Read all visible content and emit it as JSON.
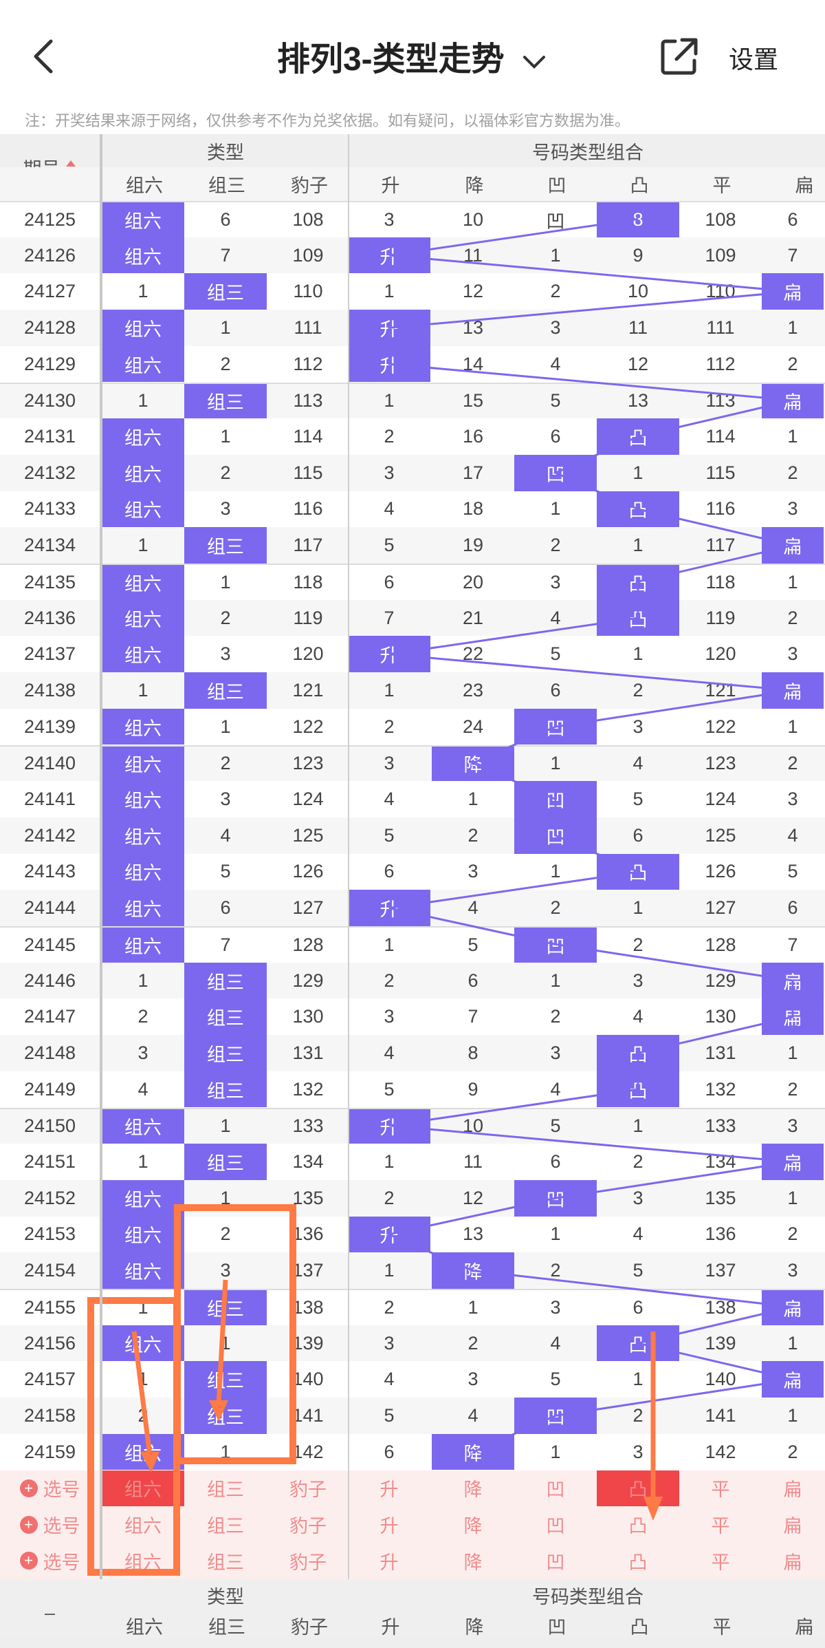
{
  "header": {
    "title": "排列3-类型走势",
    "settings": "设置",
    "notice": "注：开奖结果来源于网络，仅供参考不作为兑奖依据。如有疑问，以福体彩官方数据为准。"
  },
  "icons": {
    "back": "back-arrow-icon",
    "dropdown": "chevron-down-icon",
    "share": "share-icon"
  },
  "colors": {
    "highlight": "#7b68ee",
    "red": "#f0464a",
    "orange": "#ff7a45",
    "pink_bg": "#fdeeee"
  },
  "table": {
    "period_header": "期号",
    "group1_header": "类型",
    "group2_header": "号码类型组合",
    "type_cols": [
      "组六",
      "组三",
      "豹子"
    ],
    "combo_cols": [
      "升",
      "降",
      "凹",
      "凸",
      "平",
      "扁"
    ],
    "rows": [
      {
        "p": "24125",
        "t": [
          "组六",
          "6",
          "108"
        ],
        "c": [
          "3",
          "10",
          "凹",
          "8",
          "108",
          "6"
        ],
        "h": [
          0,
          6
        ]
      },
      {
        "p": "24126",
        "t": [
          "组六",
          "7",
          "109"
        ],
        "c": [
          "升",
          "11",
          "1",
          "9",
          "109",
          "7"
        ],
        "h": [
          0,
          3
        ]
      },
      {
        "p": "24127",
        "t": [
          "1",
          "组三",
          "110"
        ],
        "c": [
          "1",
          "12",
          "2",
          "10",
          "110",
          "扁"
        ],
        "h": [
          1,
          8
        ]
      },
      {
        "p": "24128",
        "t": [
          "组六",
          "1",
          "111"
        ],
        "c": [
          "升",
          "13",
          "3",
          "11",
          "111",
          "1"
        ],
        "h": [
          0,
          3
        ]
      },
      {
        "p": "24129",
        "t": [
          "组六",
          "2",
          "112"
        ],
        "c": [
          "升",
          "14",
          "4",
          "12",
          "112",
          "2"
        ],
        "h": [
          0,
          3
        ]
      },
      {
        "p": "24130",
        "t": [
          "1",
          "组三",
          "113"
        ],
        "c": [
          "1",
          "15",
          "5",
          "13",
          "113",
          "扁"
        ],
        "h": [
          1,
          8
        ]
      },
      {
        "p": "24131",
        "t": [
          "组六",
          "1",
          "114"
        ],
        "c": [
          "2",
          "16",
          "6",
          "凸",
          "114",
          "1"
        ],
        "h": [
          0,
          6
        ]
      },
      {
        "p": "24132",
        "t": [
          "组六",
          "2",
          "115"
        ],
        "c": [
          "3",
          "17",
          "凹",
          "1",
          "115",
          "2"
        ],
        "h": [
          0,
          5
        ]
      },
      {
        "p": "24133",
        "t": [
          "组六",
          "3",
          "116"
        ],
        "c": [
          "4",
          "18",
          "1",
          "凸",
          "116",
          "3"
        ],
        "h": [
          0,
          6
        ]
      },
      {
        "p": "24134",
        "t": [
          "1",
          "组三",
          "117"
        ],
        "c": [
          "5",
          "19",
          "2",
          "1",
          "117",
          "扁"
        ],
        "h": [
          1,
          8
        ]
      },
      {
        "p": "24135",
        "t": [
          "组六",
          "1",
          "118"
        ],
        "c": [
          "6",
          "20",
          "3",
          "凸",
          "118",
          "1"
        ],
        "h": [
          0,
          6
        ]
      },
      {
        "p": "24136",
        "t": [
          "组六",
          "2",
          "119"
        ],
        "c": [
          "7",
          "21",
          "4",
          "凸",
          "119",
          "2"
        ],
        "h": [
          0,
          6
        ]
      },
      {
        "p": "24137",
        "t": [
          "组六",
          "3",
          "120"
        ],
        "c": [
          "升",
          "22",
          "5",
          "1",
          "120",
          "3"
        ],
        "h": [
          0,
          3
        ]
      },
      {
        "p": "24138",
        "t": [
          "1",
          "组三",
          "121"
        ],
        "c": [
          "1",
          "23",
          "6",
          "2",
          "121",
          "扁"
        ],
        "h": [
          1,
          8
        ]
      },
      {
        "p": "24139",
        "t": [
          "组六",
          "1",
          "122"
        ],
        "c": [
          "2",
          "24",
          "凹",
          "3",
          "122",
          "1"
        ],
        "h": [
          0,
          5
        ]
      },
      {
        "p": "24140",
        "t": [
          "组六",
          "2",
          "123"
        ],
        "c": [
          "3",
          "降",
          "1",
          "4",
          "123",
          "2"
        ],
        "h": [
          0,
          4
        ]
      },
      {
        "p": "24141",
        "t": [
          "组六",
          "3",
          "124"
        ],
        "c": [
          "4",
          "1",
          "凹",
          "5",
          "124",
          "3"
        ],
        "h": [
          0,
          5
        ]
      },
      {
        "p": "24142",
        "t": [
          "组六",
          "4",
          "125"
        ],
        "c": [
          "5",
          "2",
          "凹",
          "6",
          "125",
          "4"
        ],
        "h": [
          0,
          5
        ]
      },
      {
        "p": "24143",
        "t": [
          "组六",
          "5",
          "126"
        ],
        "c": [
          "6",
          "3",
          "1",
          "凸",
          "126",
          "5"
        ],
        "h": [
          0,
          6
        ]
      },
      {
        "p": "24144",
        "t": [
          "组六",
          "6",
          "127"
        ],
        "c": [
          "升",
          "4",
          "2",
          "1",
          "127",
          "6"
        ],
        "h": [
          0,
          3
        ]
      },
      {
        "p": "24145",
        "t": [
          "组六",
          "7",
          "128"
        ],
        "c": [
          "1",
          "5",
          "凹",
          "2",
          "128",
          "7"
        ],
        "h": [
          0,
          5
        ]
      },
      {
        "p": "24146",
        "t": [
          "1",
          "组三",
          "129"
        ],
        "c": [
          "2",
          "6",
          "1",
          "3",
          "129",
          "扁"
        ],
        "h": [
          1,
          8
        ]
      },
      {
        "p": "24147",
        "t": [
          "2",
          "组三",
          "130"
        ],
        "c": [
          "3",
          "7",
          "2",
          "4",
          "130",
          "扁"
        ],
        "h": [
          1,
          8
        ]
      },
      {
        "p": "24148",
        "t": [
          "3",
          "组三",
          "131"
        ],
        "c": [
          "4",
          "8",
          "3",
          "凸",
          "131",
          "1"
        ],
        "h": [
          1,
          6
        ]
      },
      {
        "p": "24149",
        "t": [
          "4",
          "组三",
          "132"
        ],
        "c": [
          "5",
          "9",
          "4",
          "凸",
          "132",
          "2"
        ],
        "h": [
          1,
          6
        ]
      },
      {
        "p": "24150",
        "t": [
          "组六",
          "1",
          "133"
        ],
        "c": [
          "升",
          "10",
          "5",
          "1",
          "133",
          "3"
        ],
        "h": [
          0,
          3
        ]
      },
      {
        "p": "24151",
        "t": [
          "1",
          "组三",
          "134"
        ],
        "c": [
          "1",
          "11",
          "6",
          "2",
          "134",
          "扁"
        ],
        "h": [
          1,
          8
        ]
      },
      {
        "p": "24152",
        "t": [
          "组六",
          "1",
          "135"
        ],
        "c": [
          "2",
          "12",
          "凹",
          "3",
          "135",
          "1"
        ],
        "h": [
          0,
          5
        ]
      },
      {
        "p": "24153",
        "t": [
          "组六",
          "2",
          "136"
        ],
        "c": [
          "升",
          "13",
          "1",
          "4",
          "136",
          "2"
        ],
        "h": [
          0,
          3
        ]
      },
      {
        "p": "24154",
        "t": [
          "组六",
          "3",
          "137"
        ],
        "c": [
          "1",
          "降",
          "2",
          "5",
          "137",
          "3"
        ],
        "h": [
          0,
          4
        ]
      },
      {
        "p": "24155",
        "t": [
          "1",
          "组三",
          "138"
        ],
        "c": [
          "2",
          "1",
          "3",
          "6",
          "138",
          "扁"
        ],
        "h": [
          1,
          8
        ]
      },
      {
        "p": "24156",
        "t": [
          "组六",
          "1",
          "139"
        ],
        "c": [
          "3",
          "2",
          "4",
          "凸",
          "139",
          "1"
        ],
        "h": [
          0,
          6
        ]
      },
      {
        "p": "24157",
        "t": [
          "1",
          "组三",
          "140"
        ],
        "c": [
          "4",
          "3",
          "5",
          "1",
          "140",
          "扁"
        ],
        "h": [
          1,
          8
        ]
      },
      {
        "p": "24158",
        "t": [
          "2",
          "组三",
          "141"
        ],
        "c": [
          "5",
          "4",
          "凹",
          "2",
          "141",
          "1"
        ],
        "h": [
          1,
          5
        ]
      },
      {
        "p": "24159",
        "t": [
          "组六",
          "1",
          "142"
        ],
        "c": [
          "6",
          "降",
          "1",
          "3",
          "142",
          "2"
        ],
        "h": [
          0,
          4
        ]
      }
    ],
    "pick_label": "选号",
    "pick_rows": 3,
    "footer_group1": "类型",
    "footer_group2": "号码类型组合",
    "footer_dash": "–"
  }
}
